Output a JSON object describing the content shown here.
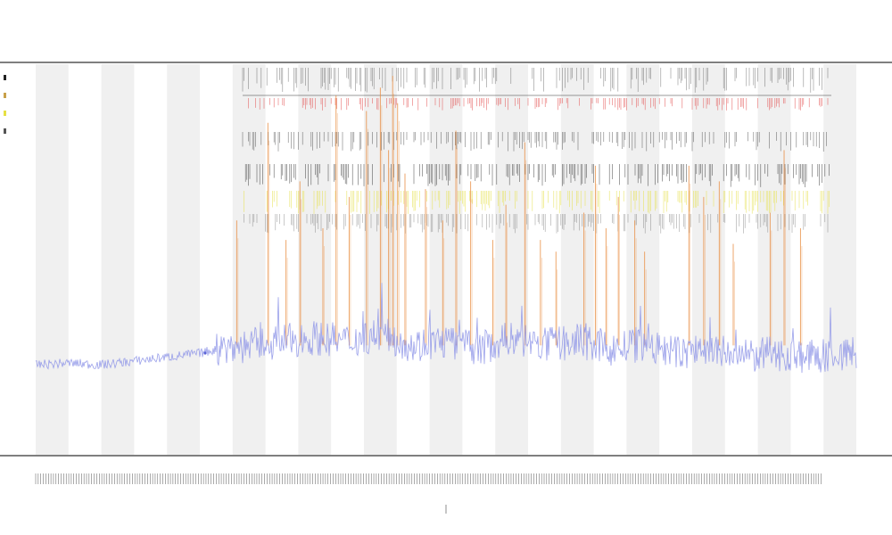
{
  "header": {
    "title": "",
    "subtitle_1": "",
    "subtitle_2": ""
  },
  "colors": {
    "band": "#f0f0f0",
    "blue_trace": "#8f96e8",
    "orange_spikes": "#e8893a",
    "red_ticks": "#e34b4b",
    "yellow_ticks": "#e6e043",
    "black_ticks": "#222222",
    "axis": "#333333"
  },
  "chart_data": {
    "type": "line",
    "title": "",
    "xlabel": "",
    "ylabel": "",
    "xlim": [
      0,
      100
    ],
    "ylim": [
      0,
      100
    ],
    "grid": false,
    "legend": "top-left",
    "shaded_bands": [
      [
        0,
        4
      ],
      [
        8,
        12
      ],
      [
        16,
        20
      ],
      [
        24,
        28
      ],
      [
        32,
        36
      ],
      [
        40,
        44
      ],
      [
        48,
        52
      ],
      [
        56,
        60
      ],
      [
        64,
        68
      ],
      [
        72,
        76
      ],
      [
        80,
        84
      ],
      [
        88,
        92
      ],
      [
        96,
        100
      ]
    ],
    "series": [
      {
        "style": "blue-trace",
        "x": [
          0,
          4,
          8,
          12,
          16,
          20,
          22,
          26,
          30,
          34,
          38,
          42,
          46,
          50,
          54,
          58,
          62,
          66,
          70,
          74,
          78,
          82,
          86,
          90,
          94,
          100
        ],
        "y": [
          23,
          23.5,
          23,
          24,
          25,
          26,
          27,
          28,
          29,
          30,
          29,
          31,
          28,
          29,
          27,
          30,
          28,
          29,
          27,
          28,
          26,
          27,
          25,
          26,
          25,
          26
        ]
      },
      {
        "style": "orange-spikes",
        "x": [
          24.5,
          28.3,
          30.5,
          32.2,
          35,
          36.6,
          38.2,
          40.3,
          42,
          43,
          43.5,
          44.1,
          45,
          47.5,
          49.6,
          51.2,
          53,
          55.7,
          57.3,
          59.6,
          61.5,
          63.4,
          66.8,
          68.2,
          69.5,
          71,
          73,
          74.2,
          79.6,
          81.4,
          83.3,
          85,
          89.5,
          91.2,
          93.2
        ],
        "y": [
          60,
          85,
          55,
          70,
          58,
          92,
          66,
          88,
          94,
          78,
          97,
          90,
          72,
          68,
          60,
          83,
          70,
          55,
          64,
          80,
          55,
          52,
          62,
          74,
          58,
          66,
          60,
          52,
          74,
          66,
          70,
          54,
          62,
          78,
          58
        ]
      }
    ]
  }
}
